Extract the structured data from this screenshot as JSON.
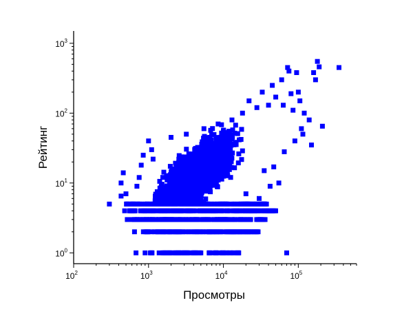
{
  "chart_data": {
    "type": "scatter",
    "xlabel": "Просмотры",
    "ylabel": "Рейтинг",
    "x_scale": "log",
    "y_scale": "log",
    "xlim": [
      100,
      600000
    ],
    "ylim": [
      0.7,
      1500
    ],
    "x_ticks": [
      100,
      1000,
      10000,
      100000
    ],
    "x_tick_labels": [
      {
        "base": "10",
        "exp": "2"
      },
      {
        "base": "10",
        "exp": "3"
      },
      {
        "base": "10",
        "exp": "4"
      },
      {
        "base": "10",
        "exp": "5"
      }
    ],
    "y_ticks": [
      1,
      10,
      100,
      1000
    ],
    "y_tick_labels": [
      {
        "base": "10",
        "exp": "0"
      },
      {
        "base": "10",
        "exp": "1"
      },
      {
        "base": "10",
        "exp": "2"
      },
      {
        "base": "10",
        "exp": "3"
      }
    ],
    "marker": "square",
    "color": "#0000FF",
    "points": [
      [
        300,
        5
      ],
      [
        430,
        6.5
      ],
      [
        430,
        10
      ],
      [
        460,
        14
      ],
      [
        500,
        7
      ],
      [
        520,
        3
      ],
      [
        480,
        4
      ],
      [
        560,
        4
      ],
      [
        600,
        3
      ],
      [
        650,
        2
      ],
      [
        680,
        1
      ],
      [
        700,
        9
      ],
      [
        750,
        12
      ],
      [
        800,
        18
      ],
      [
        850,
        25
      ],
      [
        900,
        1
      ],
      [
        950,
        2
      ],
      [
        1000,
        40
      ],
      [
        1100,
        30
      ],
      [
        1150,
        22
      ],
      [
        1300,
        2
      ],
      [
        1500,
        5
      ],
      [
        1800,
        3
      ],
      [
        2000,
        45
      ],
      [
        2500,
        1
      ],
      [
        2800,
        2
      ],
      [
        3000,
        1
      ],
      [
        3200,
        50
      ],
      [
        3600,
        4
      ],
      [
        4000,
        1
      ],
      [
        4500,
        3
      ],
      [
        5000,
        1
      ],
      [
        5500,
        60
      ],
      [
        6000,
        2
      ],
      [
        6500,
        1
      ],
      [
        7000,
        4
      ],
      [
        8000,
        1
      ],
      [
        8500,
        70
      ],
      [
        9000,
        3
      ],
      [
        10000,
        1
      ],
      [
        11000,
        5
      ],
      [
        12000,
        1
      ],
      [
        13000,
        80
      ],
      [
        14000,
        4
      ],
      [
        15000,
        2
      ],
      [
        16000,
        1
      ],
      [
        17000,
        3
      ],
      [
        18000,
        100
      ],
      [
        20000,
        7
      ],
      [
        22000,
        150
      ],
      [
        25000,
        5
      ],
      [
        28000,
        120
      ],
      [
        30000,
        6
      ],
      [
        33000,
        200
      ],
      [
        35000,
        15
      ],
      [
        40000,
        130
      ],
      [
        42000,
        9
      ],
      [
        45000,
        250
      ],
      [
        47000,
        17
      ],
      [
        50000,
        170
      ],
      [
        55000,
        10
      ],
      [
        60000,
        300
      ],
      [
        63000,
        130
      ],
      [
        65000,
        28
      ],
      [
        70000,
        1
      ],
      [
        72000,
        450
      ],
      [
        75000,
        400
      ],
      [
        80000,
        190
      ],
      [
        85000,
        110
      ],
      [
        90000,
        40
      ],
      [
        95000,
        380
      ],
      [
        100000,
        200
      ],
      [
        105000,
        150
      ],
      [
        110000,
        60
      ],
      [
        115000,
        50
      ],
      [
        120000,
        100
      ],
      [
        140000,
        80
      ],
      [
        150000,
        35
      ],
      [
        160000,
        380
      ],
      [
        170000,
        300
      ],
      [
        180000,
        550
      ],
      [
        190000,
        460
      ],
      [
        210000,
        65
      ],
      [
        350000,
        450
      ]
    ]
  }
}
